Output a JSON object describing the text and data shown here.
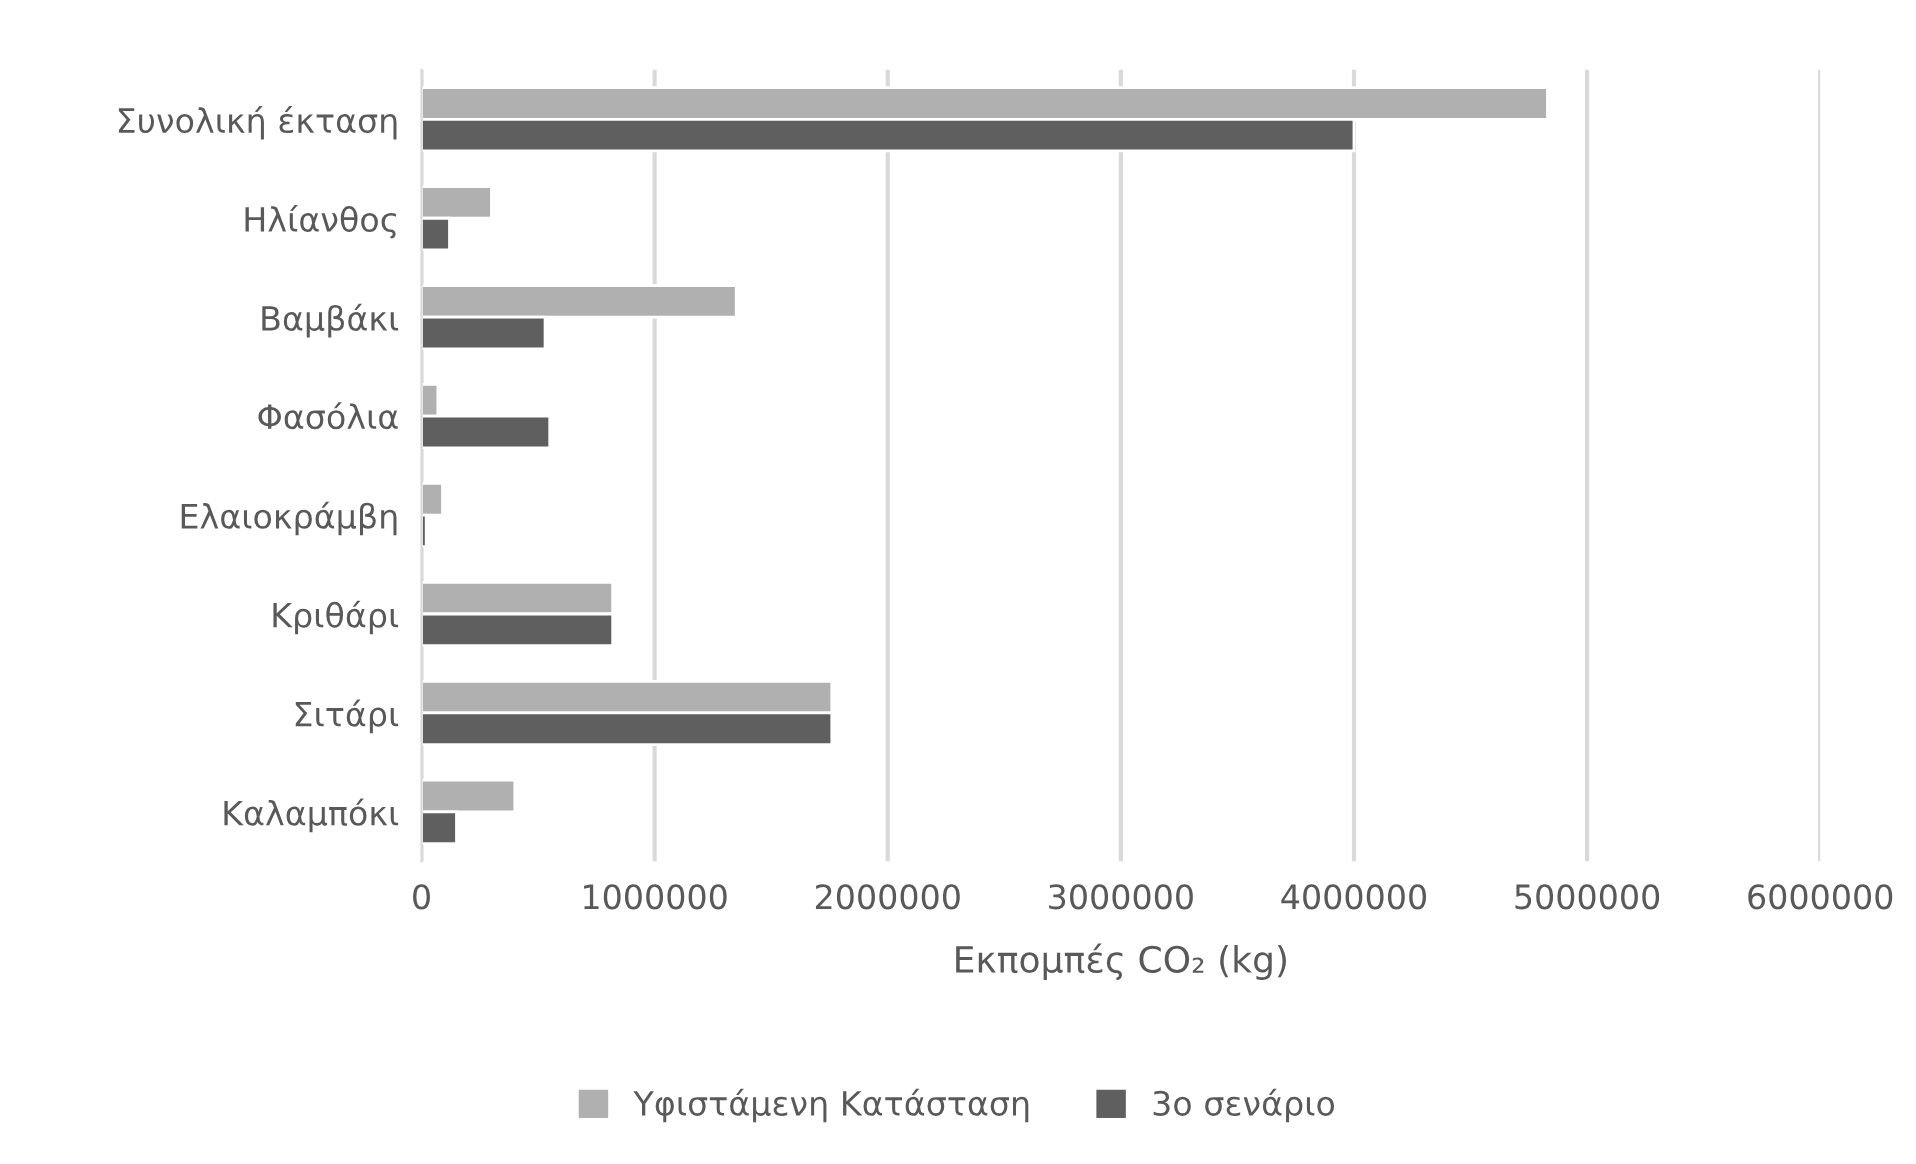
{
  "chart_data": {
    "type": "bar",
    "orientation": "horizontal",
    "categories": [
      "Συνολική έκταση",
      "Ηλίανθος",
      "Βαμβάκι",
      "Φασόλια",
      "Ελαιοκράμβη",
      "Κριθάρι",
      "Σιτάρι",
      "Καλαμπόκι"
    ],
    "series": [
      {
        "name": "Υφιστάμενη Κατάσταση",
        "color": "#b0b0b0",
        "values": [
          4830000,
          300000,
          1350000,
          70000,
          90000,
          820000,
          1760000,
          400000
        ]
      },
      {
        "name": "3ο σενάριο",
        "color": "#5f5f5f",
        "values": [
          4000000,
          120000,
          530000,
          550000,
          20000,
          820000,
          1760000,
          150000
        ]
      }
    ],
    "xlabel": "Εκπομπές CO₂ (kg)",
    "xlim": [
      0,
      6000000
    ],
    "xticks": [
      0,
      1000000,
      2000000,
      3000000,
      4000000,
      5000000,
      6000000
    ],
    "grid": "x",
    "legend": "bottom"
  }
}
